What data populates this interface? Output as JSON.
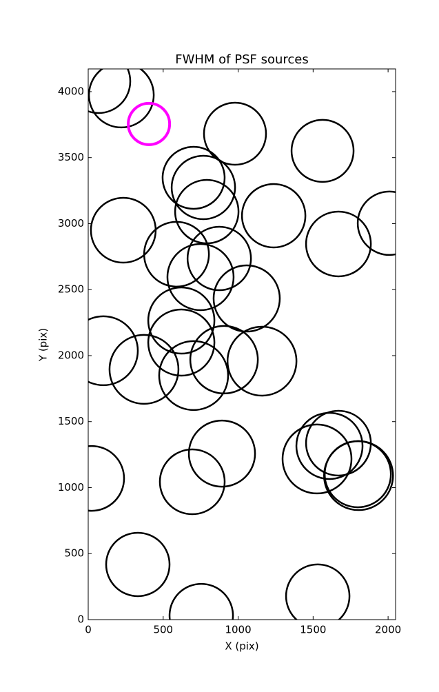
{
  "chart_data": {
    "type": "scatter",
    "title": "FWHM of PSF sources",
    "x_label": "X (pix)",
    "y_label": "Y (pix)",
    "xlim": [
      0,
      2050
    ],
    "ylim": [
      0,
      4172
    ],
    "xticks": [
      0,
      500,
      1000,
      1500,
      2000
    ],
    "yticks": [
      0,
      500,
      1000,
      1500,
      2000,
      2500,
      3000,
      3500,
      4000
    ],
    "series": [
      {
        "color": "#000000",
        "x": [
          69,
          221,
          979,
          1563,
          703,
          768,
          791,
          1237,
          2009,
          234,
          1669,
          589,
          874,
          749,
          1057,
          621,
          101,
          621,
          372,
          906,
          1159,
          703,
          1669,
          1609,
          1526,
          1798,
          1803,
          892,
          23,
          694,
          331,
          1531,
          754
        ],
        "values": [
          4078,
          3974,
          3681,
          3551,
          3347,
          3274,
          3091,
          3060,
          3003,
          2950,
          2846,
          2768,
          2736,
          2595,
          2433,
          2266,
          2037,
          2099,
          1896,
          1969,
          1958,
          1849,
          1337,
          1316,
          1217,
          1102,
          1091,
          1258,
          1070,
          1044,
          418,
          178,
          31
        ],
        "sizes": [
          46,
          47,
          45,
          45,
          45,
          46,
          46,
          46,
          46,
          47,
          47,
          47,
          46,
          48,
          48,
          48,
          50,
          48,
          50,
          49,
          50,
          50,
          47,
          48,
          50,
          48,
          50,
          48,
          47,
          47,
          46,
          46,
          46
        ]
      },
      {
        "color": "#ff00ff",
        "x": [
          405
        ],
        "values": [
          3755
        ],
        "sizes": [
          30
        ]
      }
    ]
  }
}
